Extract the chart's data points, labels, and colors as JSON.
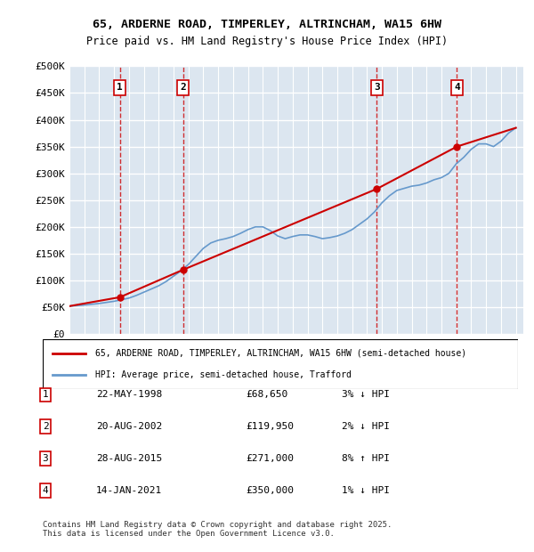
{
  "title": "65, ARDERNE ROAD, TIMPERLEY, ALTRINCHAM, WA15 6HW",
  "subtitle": "Price paid vs. HM Land Registry's House Price Index (HPI)",
  "legend_property": "65, ARDERNE ROAD, TIMPERLEY, ALTRINCHAM, WA15 6HW (semi-detached house)",
  "legend_hpi": "HPI: Average price, semi-detached house, Trafford",
  "footer": "Contains HM Land Registry data © Crown copyright and database right 2025.\nThis data is licensed under the Open Government Licence v3.0.",
  "sales": [
    {
      "num": 1,
      "date": "22-MAY-1998",
      "price": 68650,
      "pct": "3%",
      "dir": "↓",
      "year": 1998.39
    },
    {
      "num": 2,
      "date": "20-AUG-2002",
      "price": 119950,
      "pct": "2%",
      "dir": "↓",
      "year": 2002.64
    },
    {
      "num": 3,
      "date": "28-AUG-2015",
      "price": 271000,
      "pct": "8%",
      "dir": "↑",
      "year": 2015.66
    },
    {
      "num": 4,
      "date": "14-JAN-2021",
      "price": 350000,
      "pct": "1%",
      "dir": "↓",
      "year": 2021.04
    }
  ],
  "ylim": [
    0,
    500000
  ],
  "yticks": [
    0,
    50000,
    100000,
    150000,
    200000,
    250000,
    300000,
    350000,
    400000,
    450000,
    500000
  ],
  "ytick_labels": [
    "£0",
    "£50K",
    "£100K",
    "£150K",
    "£200K",
    "£250K",
    "£300K",
    "£350K",
    "£400K",
    "£450K",
    "£500K"
  ],
  "xlim_start": 1995.0,
  "xlim_end": 2025.5,
  "background_color": "#dce6f0",
  "plot_bg_color": "#dce6f0",
  "grid_color": "#ffffff",
  "red_color": "#cc0000",
  "blue_color": "#6699cc",
  "hpi_data_years": [
    1995,
    1995.5,
    1996,
    1996.5,
    1997,
    1997.5,
    1998,
    1998.5,
    1999,
    1999.5,
    2000,
    2000.5,
    2001,
    2001.5,
    2002,
    2002.5,
    2003,
    2003.5,
    2004,
    2004.5,
    2005,
    2005.5,
    2006,
    2006.5,
    2007,
    2007.5,
    2008,
    2008.5,
    2009,
    2009.5,
    2010,
    2010.5,
    2011,
    2011.5,
    2012,
    2012.5,
    2013,
    2013.5,
    2014,
    2014.5,
    2015,
    2015.5,
    2016,
    2016.5,
    2017,
    2017.5,
    2018,
    2018.5,
    2019,
    2019.5,
    2020,
    2020.5,
    2021,
    2021.5,
    2022,
    2022.5,
    2023,
    2023.5,
    2024,
    2024.5,
    2025
  ],
  "hpi_values": [
    52000,
    53000,
    54000,
    55500,
    57000,
    59000,
    61000,
    64000,
    67000,
    72000,
    78000,
    84000,
    90000,
    98000,
    108000,
    118000,
    130000,
    145000,
    160000,
    170000,
    175000,
    178000,
    182000,
    188000,
    195000,
    200000,
    200000,
    193000,
    183000,
    178000,
    182000,
    185000,
    185000,
    182000,
    178000,
    180000,
    183000,
    188000,
    195000,
    205000,
    215000,
    228000,
    245000,
    258000,
    268000,
    272000,
    276000,
    278000,
    282000,
    288000,
    292000,
    300000,
    318000,
    330000,
    345000,
    355000,
    355000,
    350000,
    360000,
    375000,
    385000
  ],
  "price_data_years": [
    1995,
    1998.39,
    2002.64,
    2015.66,
    2021.04,
    2025
  ],
  "price_values": [
    52000,
    68650,
    119950,
    271000,
    350000,
    385000
  ]
}
